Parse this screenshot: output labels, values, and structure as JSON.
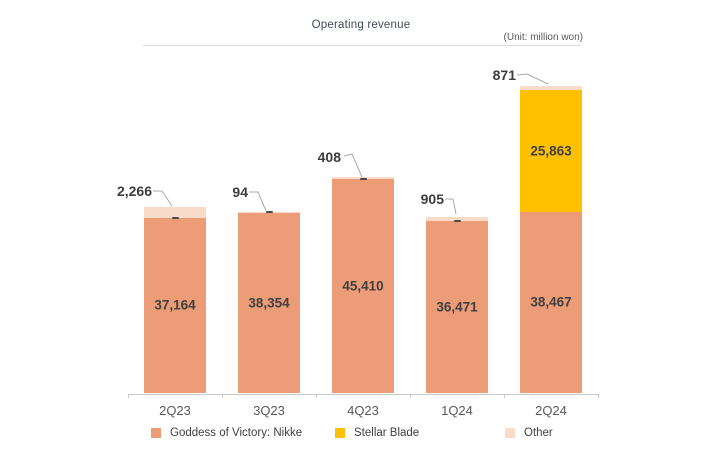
{
  "header": {
    "title": "Operating revenue",
    "unit": "(Unit: million won)"
  },
  "chart_data": {
    "type": "bar",
    "stacked": true,
    "title": "Operating revenue",
    "unit_label": "(Unit: million won)",
    "categories": [
      "2Q23",
      "3Q23",
      "4Q23",
      "1Q24",
      "2Q24"
    ],
    "series": [
      {
        "name": "Goddess of Victory: Nikke",
        "color": "#EC9C77",
        "values": [
          37164,
          38354,
          45410,
          36471,
          38467
        ],
        "labels": [
          "37,164",
          "38,354",
          "45,410",
          "36,471",
          "38,467"
        ]
      },
      {
        "name": "Stellar Blade",
        "color": "#FFC000",
        "values": [
          0,
          0,
          0,
          0,
          25863
        ],
        "labels": [
          "",
          "",
          "",
          "",
          "25,863"
        ]
      },
      {
        "name": "Other",
        "color": "#F8DCC9",
        "values": [
          2266,
          94,
          408,
          905,
          871
        ],
        "labels": [
          "",
          "",
          "",
          "",
          ""
        ]
      }
    ],
    "callout_labels": [
      "2,266",
      "94",
      "408",
      "905",
      "871"
    ],
    "legend_position": "bottom",
    "axis": {
      "baseline_value": 0,
      "gridlines": false
    },
    "colors": {
      "value_text": "#3d3d3d",
      "axis": "#c9c9c9",
      "leader_line": "#a9a9a9",
      "marker_dash": "#4a4a4a"
    }
  },
  "legend": {
    "items": [
      {
        "label": "Goddess of Victory: Nikke",
        "color": "#EC9C77"
      },
      {
        "label": "Stellar Blade",
        "color": "#FFC000"
      },
      {
        "label": "Other",
        "color": "#F8DCC9"
      }
    ]
  }
}
